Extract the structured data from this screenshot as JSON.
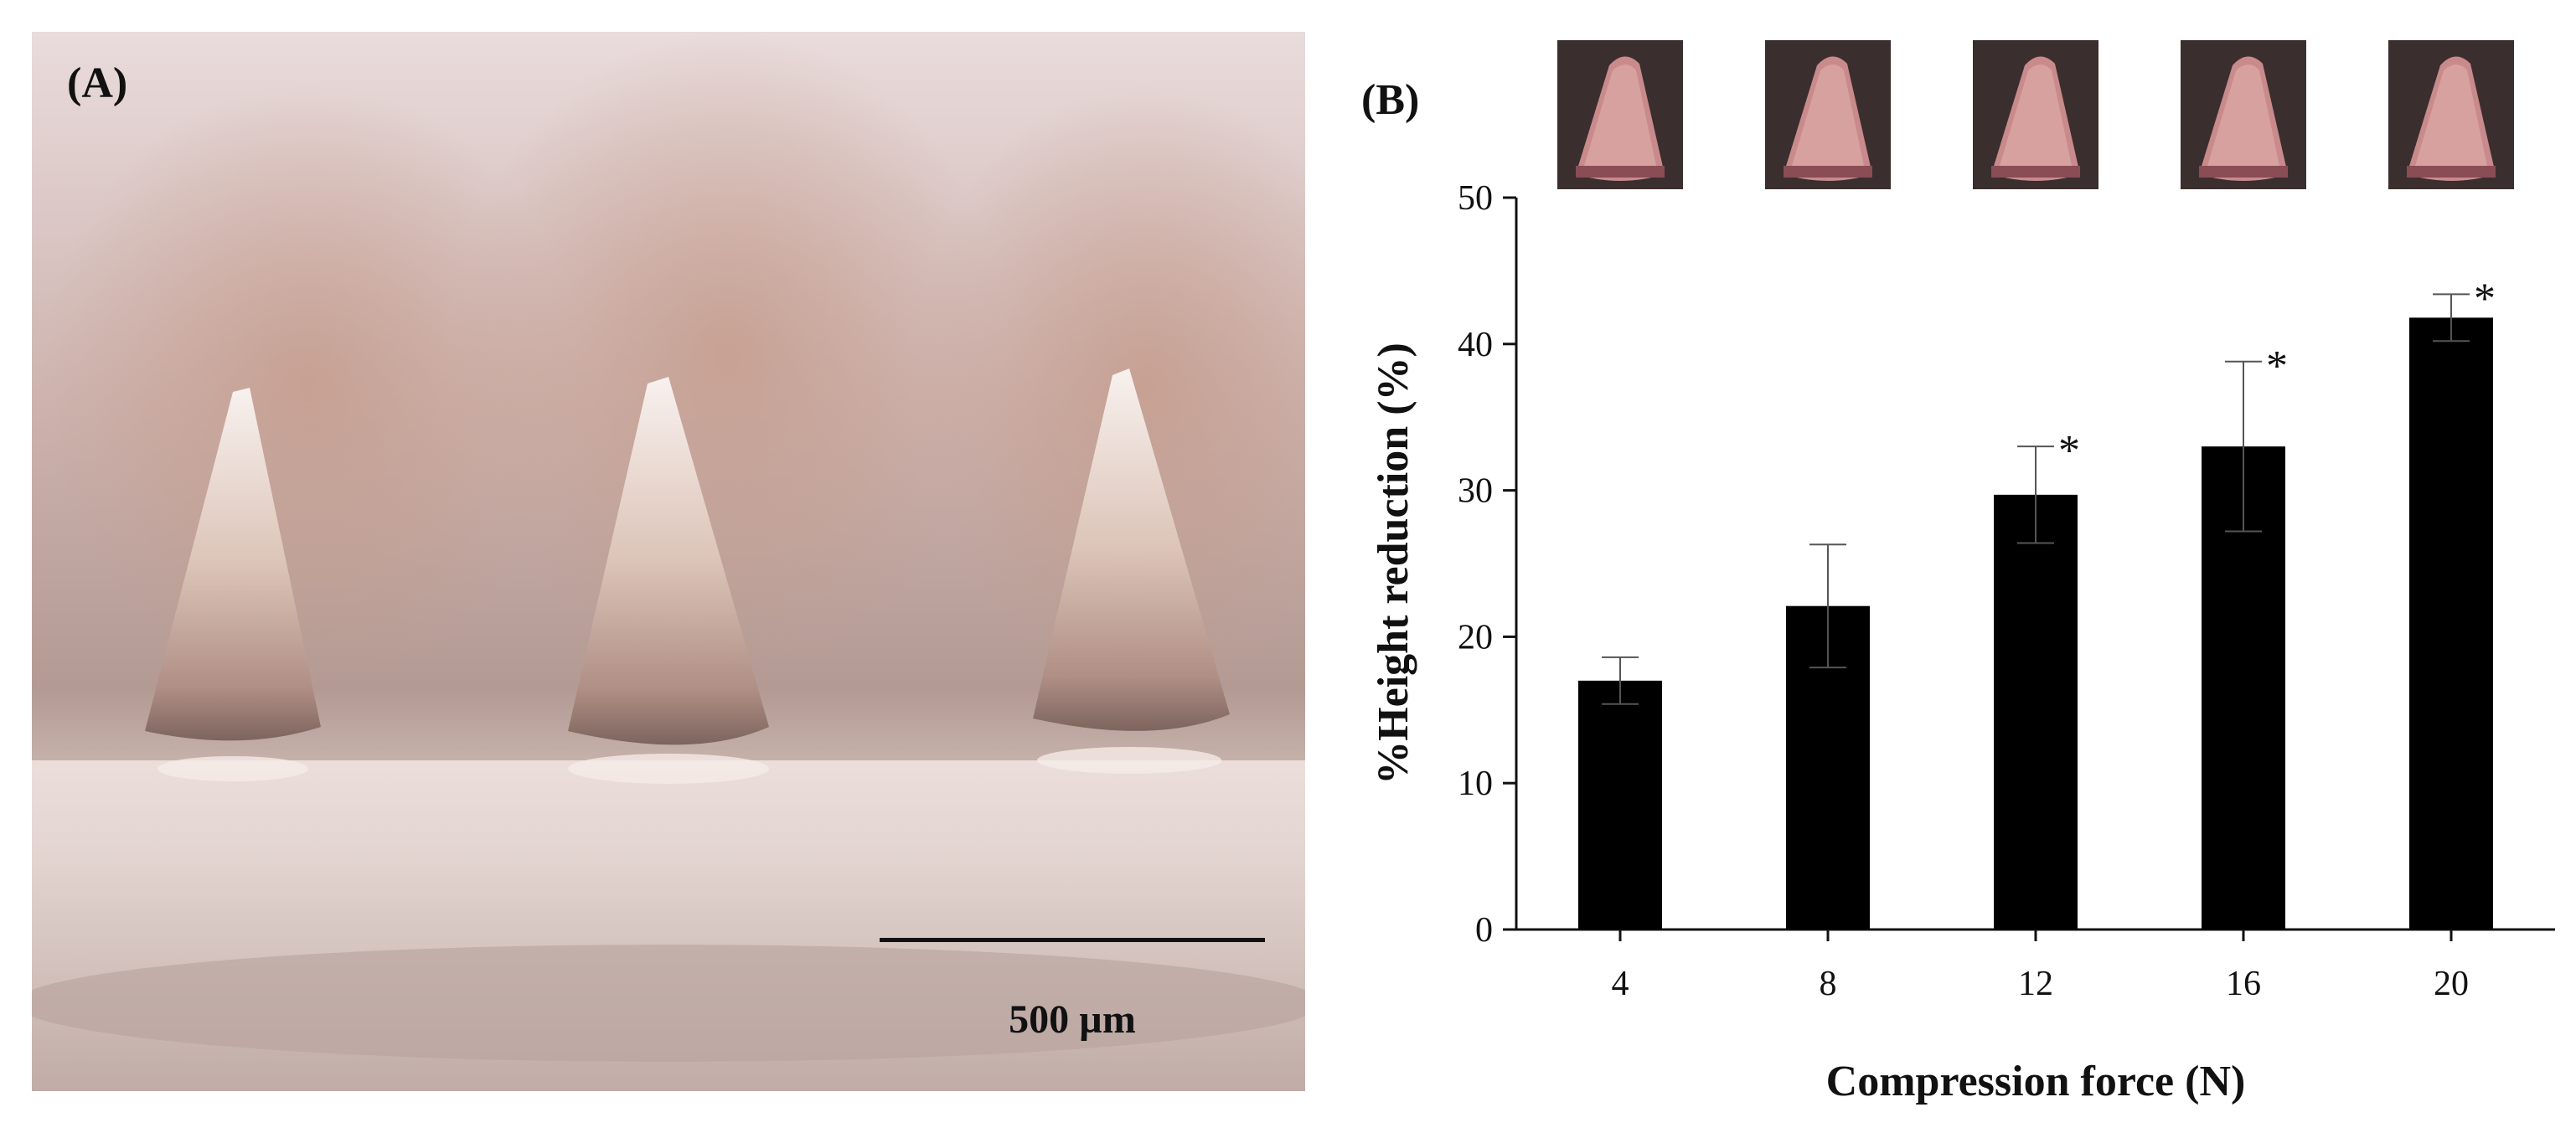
{
  "panel_a": {
    "letter": "(A)",
    "scale_bar_label": "500 µm"
  },
  "panel_b": {
    "letter": "(B)",
    "thumbnail_count": 5
  },
  "chart_data": {
    "type": "bar",
    "title": "",
    "xlabel": "Compression force (N)",
    "ylabel": "%Height reduction (%)",
    "categories": [
      "4",
      "8",
      "12",
      "16",
      "20"
    ],
    "values": [
      17.0,
      22.1,
      29.7,
      33.0,
      41.8
    ],
    "errors": [
      1.6,
      4.2,
      3.3,
      5.8,
      1.6
    ],
    "significance": [
      "",
      "",
      "*",
      "*",
      "*"
    ],
    "ylim": [
      0,
      50
    ],
    "yticks": [
      0,
      10,
      20,
      30,
      40,
      50
    ],
    "bar_color": "#000000",
    "grid": false,
    "legend": "none"
  }
}
